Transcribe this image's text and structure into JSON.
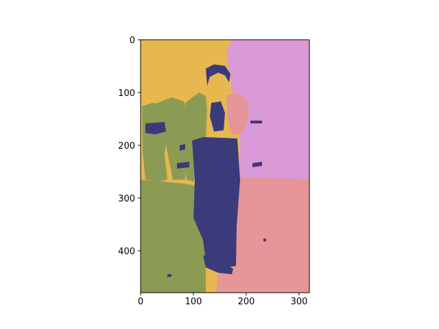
{
  "figure": {
    "kind": "segmented-image",
    "colors": {
      "mustard": "#E6B84E",
      "pink": "#DA9AD7",
      "olive": "#8C9B54",
      "navy": "#3B3A7A",
      "salmon": "#E69598",
      "axis": "#000000",
      "background": "#FFFFFF"
    },
    "axes": {
      "x_range": [
        0,
        320
      ],
      "y_range": [
        480,
        0
      ],
      "x_ticks": [
        0,
        100,
        200,
        300
      ],
      "y_ticks": [
        0,
        100,
        200,
        300,
        400
      ],
      "grid": false
    }
  }
}
